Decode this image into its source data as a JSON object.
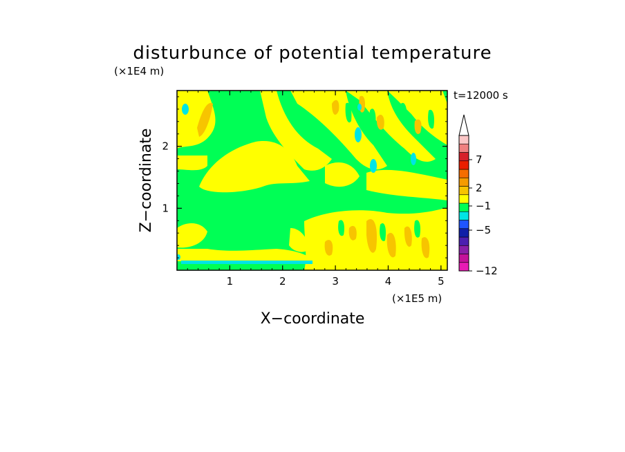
{
  "chart_data": {
    "type": "heatmap",
    "title": "disturbunce of potential temperature",
    "time_label": "t=12000 s",
    "xlabel": "X−coordinate",
    "ylabel": "Z−coordinate",
    "x_unit": "(×1E5 m)",
    "y_unit": "(×1E4 m)",
    "xlim": [
      0,
      5.12
    ],
    "ylim": [
      0,
      2.9
    ],
    "x_ticks": [
      "1",
      "2",
      "3",
      "4",
      "5"
    ],
    "y_ticks": [
      "1",
      "2"
    ],
    "colorbar": {
      "colors": [
        "#e81bb4",
        "#c4129a",
        "#8a1fa8",
        "#4b1fb0",
        "#0f1fa8",
        "#1f55ff",
        "#00e5e5",
        "#00ff55",
        "#ffff00",
        "#f7c400",
        "#f59b00",
        "#f56d00",
        "#ea1e00",
        "#d6202a",
        "#f08080",
        "#fbc7c7"
      ],
      "labels": [
        "−12",
        "−5",
        "−1",
        "2",
        "7"
      ],
      "extend_top": true
    },
    "field": {
      "background_class": "0 to 1",
      "description_regions": [
        {
          "class": "1 to 2",
          "approx_x": [
            1.0,
            2.4
          ],
          "approx_z": [
            1.35,
            2.0
          ]
        },
        {
          "class": "-1 to 0",
          "approx_x": [
            0.0,
            2.5
          ],
          "approx_z": [
            0.05,
            0.15
          ]
        },
        {
          "class": "2 to 4",
          "approx_x": [
            3.0,
            5.1
          ],
          "approx_z": [
            0.1,
            0.8
          ]
        }
      ]
    }
  }
}
